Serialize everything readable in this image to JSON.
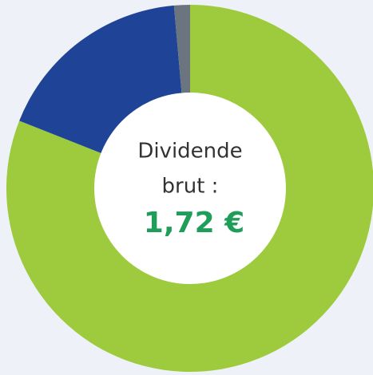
{
  "chart_data": {
    "type": "donut",
    "categories": [
      null,
      null,
      null
    ],
    "values": [
      81,
      17.6,
      1.4
    ],
    "colors": [
      "#9dcb3d",
      "#1f4497",
      "#6c757f"
    ],
    "center_text": [
      "Dividende",
      "brut :"
    ],
    "center_value": "1,72 €",
    "center_value_color": "#1f9e5a"
  }
}
